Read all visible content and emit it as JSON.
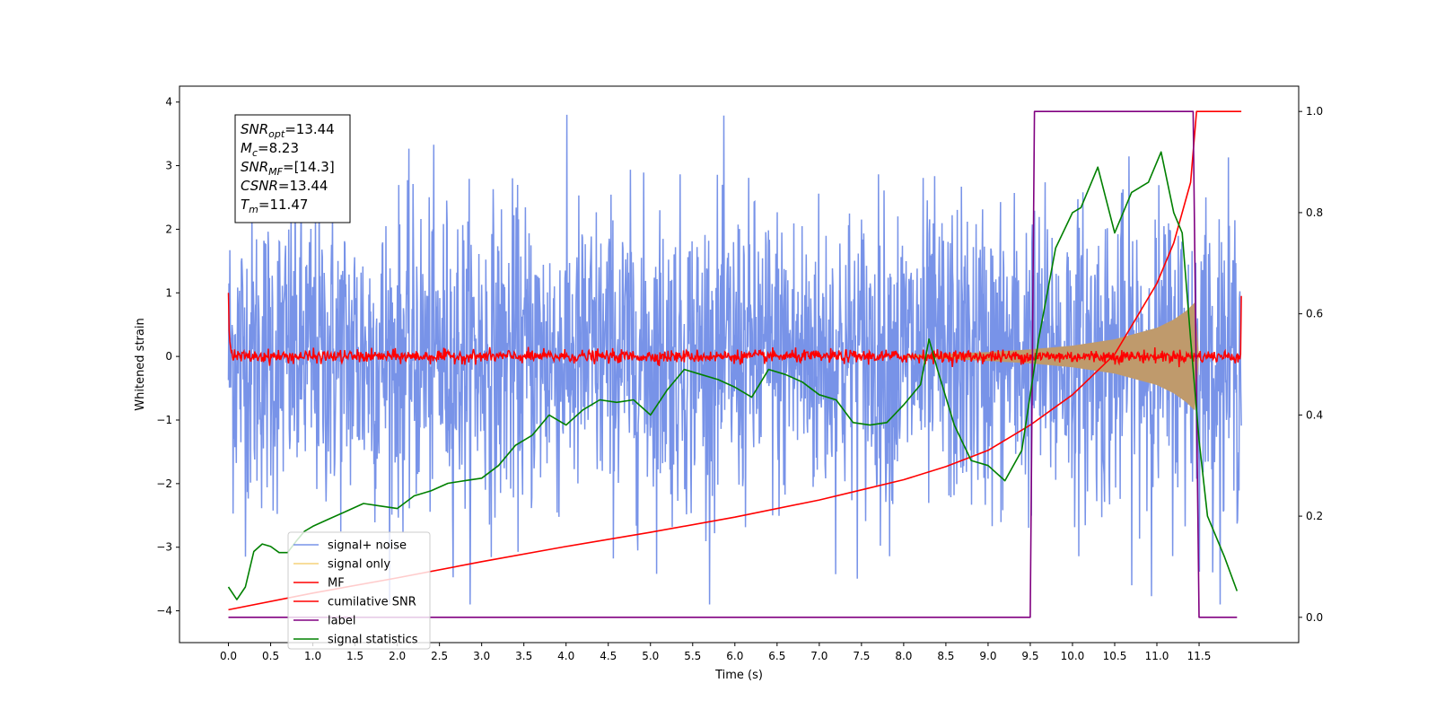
{
  "chart_data": {
    "type": "line",
    "xlabel": "Time (s)",
    "ylabel_left": "Whitened strain",
    "ylabel_right": "",
    "xlim": [
      -0.58,
      12.68
    ],
    "ylim_left": [
      -4.5,
      4.25
    ],
    "ylim_right": [
      -0.05,
      1.05
    ],
    "x_ticks": [
      0.0,
      0.5,
      1.0,
      1.5,
      2.0,
      2.5,
      3.0,
      3.5,
      4.0,
      4.5,
      5.0,
      5.5,
      6.0,
      6.5,
      7.0,
      7.5,
      8.0,
      8.5,
      9.0,
      9.5,
      10.0,
      10.5,
      11.0,
      11.5
    ],
    "x_tick_labels": [
      "0.0",
      "0.5",
      "1.0",
      "1.5",
      "2.0",
      "2.5",
      "3.0",
      "3.5",
      "4.0",
      "4.5",
      "5.0",
      "5.5",
      "6.0",
      "6.5",
      "7.0",
      "7.5",
      "8.0",
      "8.5",
      "9.0",
      "9.5",
      "10.0",
      "10.5",
      "11.0",
      "11.5"
    ],
    "y_ticks_left": [
      -4,
      -3,
      -2,
      -1,
      0,
      1,
      2,
      3,
      4
    ],
    "y_tick_labels_left": [
      "−4",
      "−3",
      "−2",
      "−1",
      "0",
      "1",
      "2",
      "3",
      "4"
    ],
    "y_ticks_right": [
      0.0,
      0.2,
      0.4,
      0.6,
      0.8,
      1.0
    ],
    "y_tick_labels_right": [
      "0.0",
      "0.2",
      "0.4",
      "0.6",
      "0.8",
      "1.0"
    ],
    "grid": false,
    "legend_position": "lower-left",
    "annotation": [
      {
        "base": "SNR",
        "sub": "opt",
        "value": "=13.44"
      },
      {
        "base": "M",
        "sub": "c",
        "value": "=8.23"
      },
      {
        "base": "SNR",
        "sub": "MF",
        "value": "=[14.3]"
      },
      {
        "base": "CSNR",
        "sub": "",
        "value": "=13.44"
      },
      {
        "base": "T",
        "sub": "m",
        "value": "=11.47"
      }
    ],
    "series": [
      {
        "name": "signal+ noise",
        "axis": "left",
        "color": "#7893e8",
        "kind": "noise",
        "x_range": [
          0.0,
          12.0
        ],
        "band_typical": 1.2,
        "band_peak_max": 3.8,
        "band_peak_min": -3.9
      },
      {
        "name": "signal only",
        "axis": "left",
        "color": "#f5d27a",
        "kind": "chirp-envelope",
        "x": [
          8.0,
          8.5,
          9.0,
          9.5,
          10.0,
          10.5,
          11.0,
          11.2,
          11.35,
          11.45,
          11.5
        ],
        "envelope": [
          0.02,
          0.04,
          0.07,
          0.11,
          0.17,
          0.27,
          0.45,
          0.58,
          0.72,
          0.85,
          0.0
        ]
      },
      {
        "name": "MF",
        "axis": "left",
        "color": "#ff0000",
        "kind": "noise",
        "x_range": [
          0.0,
          12.0
        ],
        "band_typical": 0.1,
        "edge_values": [
          1.0,
          0.95
        ]
      },
      {
        "name": "cumilative SNR",
        "axis": "right",
        "color": "#ff0000",
        "x": [
          0.0,
          1.0,
          2.0,
          3.0,
          4.0,
          5.0,
          6.0,
          7.0,
          7.5,
          8.0,
          8.5,
          9.0,
          9.5,
          10.0,
          10.5,
          11.0,
          11.2,
          11.4,
          11.47,
          11.5,
          12.0
        ],
        "values": [
          0.015,
          0.048,
          0.078,
          0.11,
          0.14,
          0.168,
          0.198,
          0.232,
          0.252,
          0.272,
          0.298,
          0.33,
          0.38,
          0.44,
          0.52,
          0.66,
          0.74,
          0.86,
          1.0,
          1.0,
          1.0
        ]
      },
      {
        "name": "label",
        "axis": "right",
        "color": "#800080",
        "x": [
          0.0,
          9.5,
          9.55,
          11.43,
          11.5,
          11.95
        ],
        "values": [
          0.0,
          0.0,
          1.0,
          1.0,
          0.0,
          0.0
        ]
      },
      {
        "name": "signal statistics",
        "axis": "right",
        "color": "#008000",
        "x": [
          0.0,
          0.1,
          0.2,
          0.3,
          0.4,
          0.5,
          0.6,
          0.7,
          0.8,
          0.9,
          1.0,
          1.2,
          1.4,
          1.6,
          1.8,
          2.0,
          2.2,
          2.4,
          2.6,
          2.8,
          3.0,
          3.2,
          3.4,
          3.6,
          3.8,
          4.0,
          4.2,
          4.4,
          4.6,
          4.8,
          5.0,
          5.2,
          5.4,
          5.6,
          5.8,
          6.0,
          6.2,
          6.4,
          6.6,
          6.8,
          7.0,
          7.2,
          7.4,
          7.6,
          7.8,
          8.0,
          8.2,
          8.3,
          8.4,
          8.6,
          8.8,
          9.0,
          9.2,
          9.4,
          9.6,
          9.8,
          10.0,
          10.1,
          10.3,
          10.5,
          10.7,
          10.9,
          11.05,
          11.2,
          11.3,
          11.4,
          11.5,
          11.6,
          11.8,
          11.95
        ],
        "values": [
          0.06,
          0.035,
          0.06,
          0.13,
          0.145,
          0.14,
          0.128,
          0.128,
          0.15,
          0.17,
          0.18,
          0.195,
          0.21,
          0.225,
          0.22,
          0.215,
          0.24,
          0.25,
          0.265,
          0.27,
          0.275,
          0.3,
          0.34,
          0.36,
          0.4,
          0.38,
          0.41,
          0.43,
          0.425,
          0.43,
          0.4,
          0.45,
          0.49,
          0.48,
          0.47,
          0.455,
          0.435,
          0.49,
          0.48,
          0.465,
          0.44,
          0.43,
          0.385,
          0.38,
          0.385,
          0.42,
          0.46,
          0.55,
          0.49,
          0.38,
          0.31,
          0.3,
          0.27,
          0.33,
          0.55,
          0.73,
          0.8,
          0.81,
          0.89,
          0.76,
          0.84,
          0.86,
          0.92,
          0.8,
          0.76,
          0.55,
          0.35,
          0.2,
          0.12,
          0.052
        ]
      }
    ]
  }
}
